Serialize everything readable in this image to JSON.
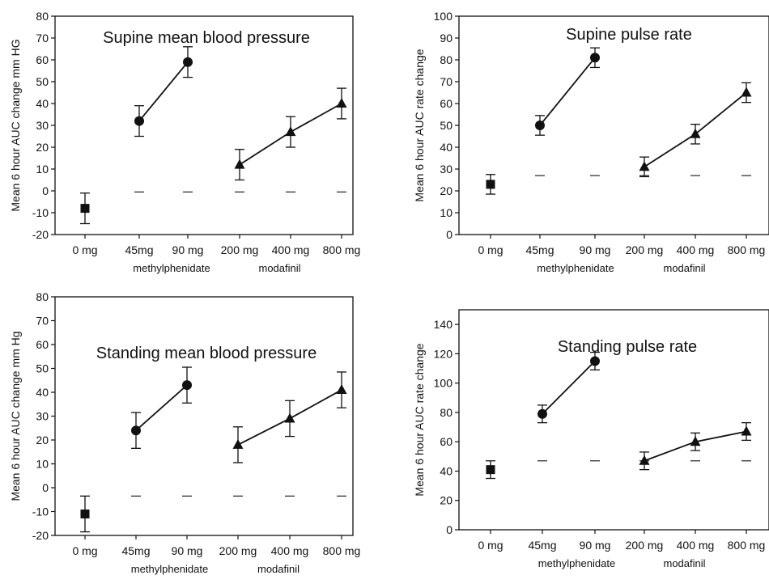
{
  "chart_data": [
    {
      "type": "scatter",
      "title": "Supine mean blood pressure",
      "ylabel": "Mean 6 hour AUC change mm HG",
      "categories": [
        "0 mg",
        "45mg",
        "90 mg",
        "200 mg",
        "400 mg",
        "800 mg"
      ],
      "group_labels": [
        "methylphenidate",
        "modafinil"
      ],
      "ylim": [
        -20,
        80
      ],
      "yticks": [
        "-20",
        "-10",
        "0",
        "10",
        "20",
        "30",
        "40",
        "50",
        "60",
        "70",
        "80"
      ],
      "series": [
        {
          "marker": "square",
          "x": [
            "0 mg"
          ],
          "values": [
            -8
          ],
          "err": [
            7
          ]
        },
        {
          "marker": "circle",
          "x": [
            "45mg",
            "90 mg"
          ],
          "values": [
            32,
            59
          ],
          "err": [
            7,
            7
          ]
        },
        {
          "marker": "triangle",
          "x": [
            "200 mg",
            "400 mg",
            "800 mg"
          ],
          "values": [
            12,
            27,
            40
          ],
          "err": [
            7,
            7,
            7
          ]
        }
      ],
      "reference": {
        "categories": [
          "45mg",
          "90 mg",
          "200 mg",
          "400 mg",
          "800 mg"
        ],
        "value": -0.5
      }
    },
    {
      "type": "scatter",
      "title": "Supine pulse rate",
      "ylabel": "Mean 6 hour AUC rate change",
      "categories": [
        "0 mg",
        "45mg",
        "90 mg",
        "200 mg",
        "400 mg",
        "800 mg"
      ],
      "group_labels": [
        "methylphenidate",
        "modafinil"
      ],
      "ylim": [
        0,
        100
      ],
      "yticks": [
        "0",
        "10",
        "20",
        "30",
        "40",
        "50",
        "60",
        "70",
        "80",
        "90",
        "100"
      ],
      "series": [
        {
          "marker": "square",
          "x": [
            "0 mg"
          ],
          "values": [
            23
          ],
          "err": [
            4.5
          ]
        },
        {
          "marker": "circle",
          "x": [
            "45mg",
            "90 mg"
          ],
          "values": [
            50,
            81
          ],
          "err": [
            4.5,
            4.5
          ]
        },
        {
          "marker": "triangle",
          "x": [
            "200 mg",
            "400 mg",
            "800 mg"
          ],
          "values": [
            31,
            46,
            65
          ],
          "err": [
            4.5,
            4.5,
            4.5
          ]
        }
      ],
      "reference": {
        "categories": [
          "45mg",
          "90 mg",
          "200 mg",
          "400 mg",
          "800 mg"
        ],
        "value": 27
      }
    },
    {
      "type": "scatter",
      "title": "Standing mean blood pressure",
      "ylabel": "Mean 6 hour AUC change mm Hg",
      "categories": [
        "0 mg",
        "45mg",
        "90 mg",
        "200 mg",
        "400 mg",
        "800 mg"
      ],
      "group_labels": [
        "methylphenidate",
        "modafinil"
      ],
      "ylim": [
        -20,
        80
      ],
      "yticks": [
        "-20",
        "-10",
        "0",
        "10",
        "20",
        "30",
        "40",
        "50",
        "60",
        "70",
        "80"
      ],
      "series": [
        {
          "marker": "square",
          "x": [
            "0 mg"
          ],
          "values": [
            -11
          ],
          "err": [
            7.5
          ]
        },
        {
          "marker": "circle",
          "x": [
            "45mg",
            "90 mg"
          ],
          "values": [
            24,
            43
          ],
          "err": [
            7.5,
            7.5
          ]
        },
        {
          "marker": "triangle",
          "x": [
            "200 mg",
            "400 mg",
            "800 mg"
          ],
          "values": [
            18,
            29,
            41
          ],
          "err": [
            7.5,
            7.5,
            7.5
          ]
        }
      ],
      "reference": {
        "categories": [
          "45mg",
          "90 mg",
          "200 mg",
          "400 mg",
          "800 mg"
        ],
        "value": -3.5
      }
    },
    {
      "type": "scatter",
      "title": "Standing pulse rate",
      "ylabel": "Mean 6 hour AUC rate change",
      "categories": [
        "0 mg",
        "45mg",
        "90 mg",
        "200 mg",
        "400 mg",
        "800 mg"
      ],
      "group_labels": [
        "methylphenidate",
        "modafinil"
      ],
      "ylim": [
        0,
        150
      ],
      "yticks": [
        "0",
        "20",
        "40",
        "60",
        "80",
        "100",
        "120",
        "140"
      ],
      "series": [
        {
          "marker": "square",
          "x": [
            "0 mg"
          ],
          "values": [
            41
          ],
          "err": [
            6
          ]
        },
        {
          "marker": "circle",
          "x": [
            "45mg",
            "90 mg"
          ],
          "values": [
            79,
            115
          ],
          "err": [
            6,
            6
          ]
        },
        {
          "marker": "triangle",
          "x": [
            "200 mg",
            "400 mg",
            "800 mg"
          ],
          "values": [
            47,
            60,
            67
          ],
          "err": [
            6,
            6,
            6
          ]
        }
      ],
      "reference": {
        "categories": [
          "45mg",
          "90 mg",
          "200 mg",
          "400 mg",
          "800 mg"
        ],
        "value": 47
      }
    }
  ]
}
